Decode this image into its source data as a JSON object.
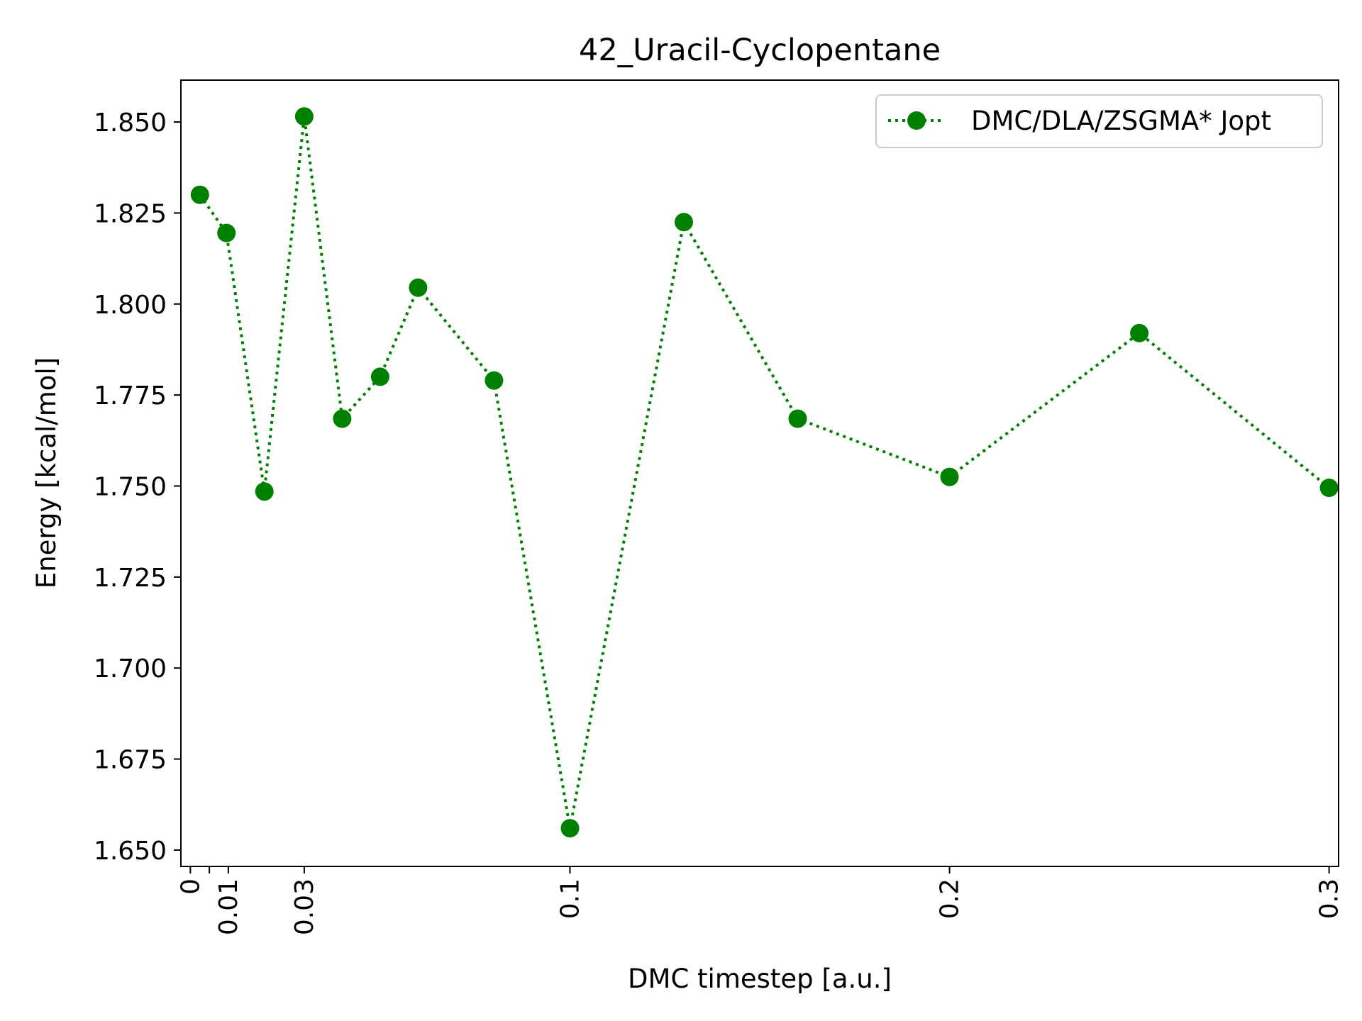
{
  "chart_data": {
    "type": "line",
    "title": "42_Uracil-Cyclopentane",
    "xlabel": "DMC timestep [a.u.]",
    "ylabel": "Energy [kcal/mol]",
    "xlim": [
      -0.0025,
      0.3025
    ],
    "ylim": [
      1.6455,
      1.8615
    ],
    "xticks": [
      0,
      0.005,
      0.01,
      0.03,
      0.1,
      0.2,
      0.3
    ],
    "xtick_labels": [
      "0",
      "",
      "0.01",
      "0.03",
      "0.1",
      "0.2",
      "0.3"
    ],
    "yticks": [
      1.65,
      1.675,
      1.7,
      1.725,
      1.75,
      1.775,
      1.8,
      1.825,
      1.85
    ],
    "ytick_labels": [
      "1.650",
      "1.675",
      "1.700",
      "1.725",
      "1.750",
      "1.775",
      "1.800",
      "1.825",
      "1.850"
    ],
    "grid": false,
    "legend_position": "upper right",
    "series": [
      {
        "name": "DMC/DLA/ZSGMA* Jopt",
        "color": "#008000",
        "line_style": "dotted",
        "marker": "circle",
        "x": [
          0.0025,
          0.0095,
          0.0195,
          0.03,
          0.04,
          0.05,
          0.06,
          0.08,
          0.1,
          0.13,
          0.16,
          0.2,
          0.25,
          0.3
        ],
        "y": [
          1.83,
          1.8195,
          1.7485,
          1.8515,
          1.7685,
          1.78,
          1.8045,
          1.779,
          1.656,
          1.8225,
          1.7685,
          1.7525,
          1.792,
          1.7495
        ]
      }
    ]
  }
}
